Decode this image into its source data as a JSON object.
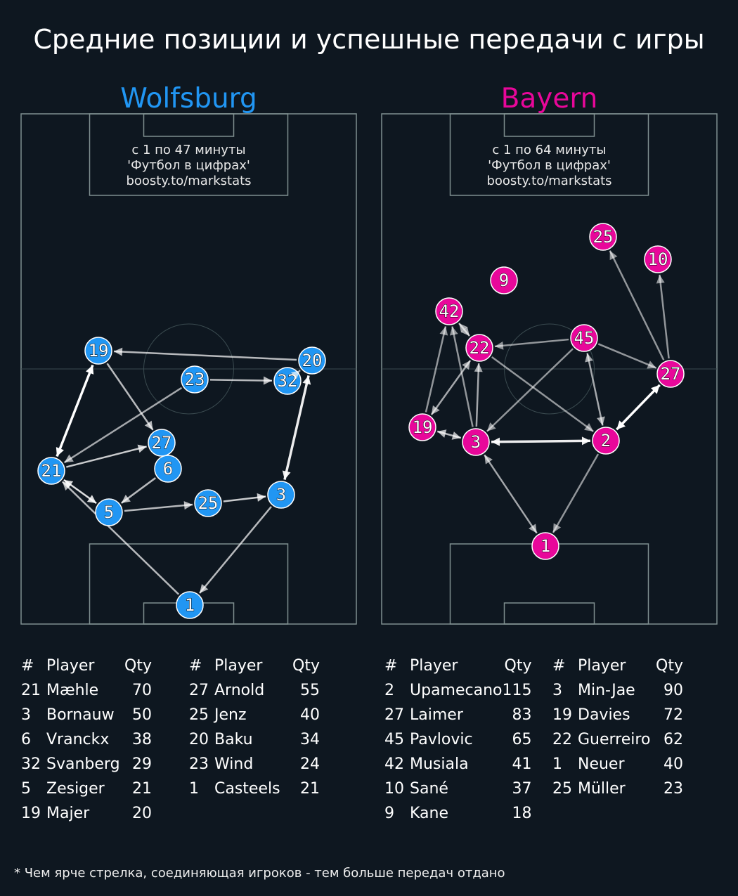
{
  "title": "Средние позиции и успешные передачи с игры",
  "footer": "* Чем ярче стрелка, соединяющая игроков - тем больше передач отдано",
  "teams": [
    {
      "name": "Wolfsburg",
      "color": "#2196f3",
      "note": [
        "с 1 по 47 минуты",
        "'Футбол в цифрах'",
        "boosty.to/markstats"
      ],
      "players": [
        "19",
        "23",
        "32",
        "20",
        "27",
        "6",
        "21",
        "5",
        "25",
        "3",
        "1"
      ],
      "passes": [
        {
          "from": "20",
          "to": "19",
          "strength": 0.6
        },
        {
          "from": "23",
          "to": "32",
          "strength": 0.6
        },
        {
          "from": "19",
          "to": "27",
          "strength": 0.6
        },
        {
          "from": "23",
          "to": "21",
          "strength": 0.5
        },
        {
          "from": "21",
          "to": "19",
          "strength": 1.0,
          "both": true
        },
        {
          "from": "21",
          "to": "27",
          "strength": 0.7
        },
        {
          "from": "6",
          "to": "5",
          "strength": 0.6
        },
        {
          "from": "21",
          "to": "5",
          "strength": 0.8,
          "both": true
        },
        {
          "from": "1",
          "to": "21",
          "strength": 0.6
        },
        {
          "from": "5",
          "to": "25",
          "strength": 0.6
        },
        {
          "from": "25",
          "to": "3",
          "strength": 0.7
        },
        {
          "from": "3",
          "to": "20",
          "strength": 0.9,
          "both": true
        },
        {
          "from": "3",
          "to": "1",
          "strength": 0.6
        },
        {
          "from": "32",
          "to": "20",
          "strength": 0.6
        }
      ],
      "table_headers": [
        "#",
        "Player",
        "Qty"
      ],
      "table": [
        [
          [
            "21",
            "Mæhle",
            "70"
          ],
          [
            "3",
            "Bornauw",
            "50"
          ],
          [
            "6",
            "Vranckx",
            "38"
          ],
          [
            "32",
            "Svanberg",
            "29"
          ],
          [
            "5",
            "Zesiger",
            "21"
          ],
          [
            "19",
            "Majer",
            "20"
          ]
        ],
        [
          [
            "27",
            "Arnold",
            "55"
          ],
          [
            "25",
            "Jenz",
            "40"
          ],
          [
            "20",
            "Baku",
            "34"
          ],
          [
            "23",
            "Wind",
            "24"
          ],
          [
            "1",
            "Casteels",
            "21"
          ]
        ]
      ]
    },
    {
      "name": "Bayern",
      "color": "#e8079a",
      "note": [
        "с 1 по 64 минуты",
        "'Футбол в цифрах'",
        "boosty.to/markstats"
      ],
      "players": [
        "25",
        "10",
        "9",
        "42",
        "22",
        "45",
        "27",
        "19",
        "3",
        "2",
        "1"
      ],
      "passes": [
        {
          "from": "27",
          "to": "25",
          "strength": 0.4
        },
        {
          "from": "27",
          "to": "10",
          "strength": 0.4
        },
        {
          "from": "45",
          "to": "22",
          "strength": 0.4
        },
        {
          "from": "45",
          "to": "27",
          "strength": 0.4
        },
        {
          "from": "45",
          "to": "3",
          "strength": 0.4
        },
        {
          "from": "45",
          "to": "2",
          "strength": 0.5,
          "both": true
        },
        {
          "from": "22",
          "to": "2",
          "strength": 0.4
        },
        {
          "from": "22",
          "to": "42",
          "strength": 0.5,
          "both": true
        },
        {
          "from": "19",
          "to": "42",
          "strength": 0.4
        },
        {
          "from": "3",
          "to": "42",
          "strength": 0.4
        },
        {
          "from": "3",
          "to": "22",
          "strength": 0.5
        },
        {
          "from": "22",
          "to": "19",
          "strength": 0.5,
          "both": true
        },
        {
          "from": "19",
          "to": "3",
          "strength": 0.6,
          "both": true
        },
        {
          "from": "3",
          "to": "2",
          "strength": 0.9,
          "both": true
        },
        {
          "from": "2",
          "to": "27",
          "strength": 1.0,
          "both": true
        },
        {
          "from": "3",
          "to": "1",
          "strength": 0.5,
          "both": true
        },
        {
          "from": "2",
          "to": "1",
          "strength": 0.4
        }
      ],
      "table_headers": [
        "#",
        "Player",
        "Qty"
      ],
      "table": [
        [
          [
            "2",
            "Upamecano",
            "115"
          ],
          [
            "27",
            "Laimer",
            "83"
          ],
          [
            "45",
            "Pavlovic",
            "65"
          ],
          [
            "42",
            "Musiala",
            "41"
          ],
          [
            "10",
            "Sané",
            "37"
          ],
          [
            "9",
            "Kane",
            "18"
          ]
        ],
        [
          [
            "3",
            "Min-Jae",
            "90"
          ],
          [
            "19",
            "Davies",
            "72"
          ],
          [
            "22",
            "Guerreiro",
            "62"
          ],
          [
            "1",
            "Neuer",
            "40"
          ],
          [
            "25",
            "Müller",
            "23"
          ]
        ]
      ]
    }
  ]
}
